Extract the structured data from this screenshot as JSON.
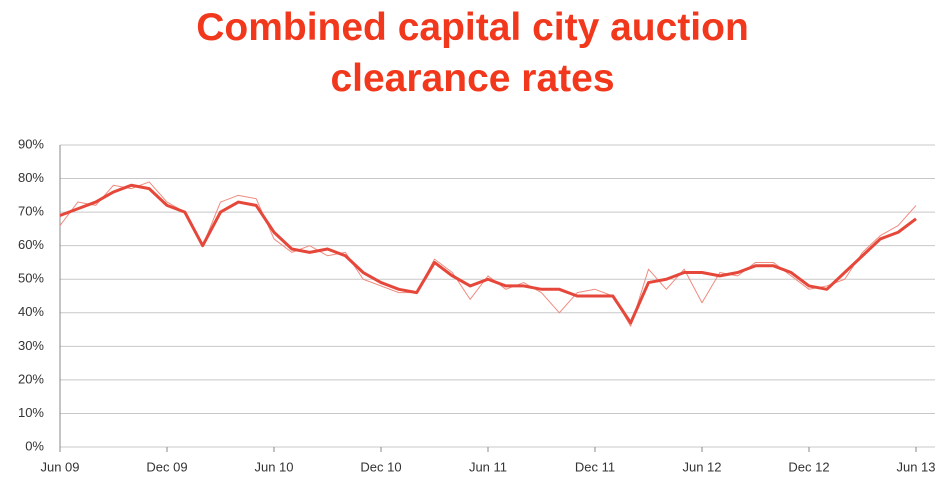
{
  "chart_data": {
    "type": "line",
    "title": "Combined capital city auction clearance rates",
    "categories": [
      "Jun 09",
      null,
      null,
      null,
      null,
      null,
      "Dec 09",
      null,
      null,
      null,
      null,
      null,
      "Jun 10",
      null,
      null,
      null,
      null,
      null,
      "Dec 10",
      null,
      null,
      null,
      null,
      null,
      "Jun 11",
      null,
      null,
      null,
      null,
      null,
      "Dec 11",
      null,
      null,
      null,
      null,
      null,
      "Jun 12",
      null,
      null,
      null,
      null,
      null,
      "Dec 12",
      null,
      null,
      null,
      null,
      null,
      "Jun 13"
    ],
    "series": [
      {
        "color": "#f08a7e",
        "width": 1,
        "values": [
          66,
          73,
          72,
          78,
          77,
          79,
          73,
          70,
          60,
          73,
          75,
          74,
          62,
          58,
          60,
          57,
          58,
          50,
          48,
          46,
          46,
          56,
          52,
          44,
          51,
          47,
          49,
          46,
          40,
          46,
          47,
          45,
          36,
          53,
          47,
          53,
          43,
          52,
          51,
          55,
          55,
          51,
          47,
          48,
          50,
          58,
          63,
          66,
          72
        ]
      },
      {
        "color": "#e5483a",
        "width": 3,
        "values": [
          69,
          71,
          73,
          76,
          78,
          77,
          72,
          70,
          60,
          70,
          73,
          72,
          64,
          59,
          58,
          59,
          57,
          52,
          49,
          47,
          46,
          55,
          51,
          48,
          50,
          48,
          48,
          47,
          47,
          45,
          45,
          45,
          37,
          49,
          50,
          52,
          52,
          51,
          52,
          54,
          54,
          52,
          48,
          47,
          52,
          57,
          62,
          64,
          68
        ]
      }
    ],
    "ylim": [
      0,
      90
    ],
    "yticks": [
      {
        "value": 0,
        "label": "0%"
      },
      {
        "value": 10,
        "label": "10%"
      },
      {
        "value": 20,
        "label": "20%"
      },
      {
        "value": 30,
        "label": "30%"
      },
      {
        "value": 40,
        "label": "40%"
      },
      {
        "value": 50,
        "label": "50%"
      },
      {
        "value": 60,
        "label": "60%"
      },
      {
        "value": 70,
        "label": "70%"
      },
      {
        "value": 80,
        "label": "80%"
      },
      {
        "value": 90,
        "label": "90%"
      }
    ],
    "grid": true
  }
}
